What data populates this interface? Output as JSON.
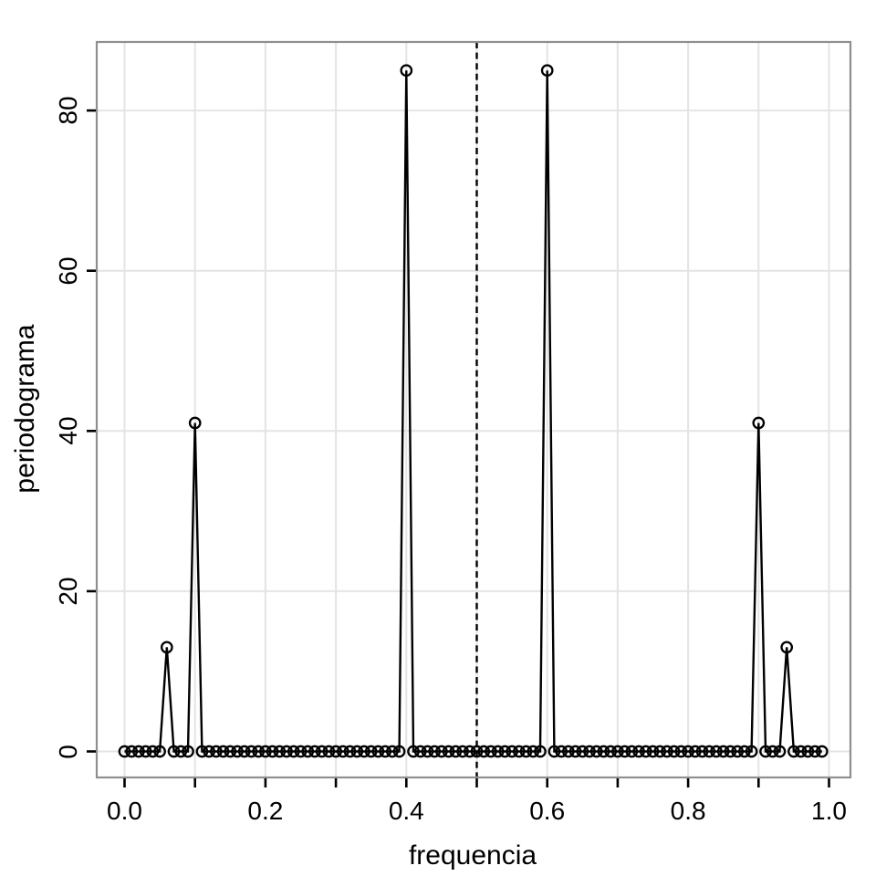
{
  "colors": {
    "background": "#ffffff",
    "panel_border": "#8f8f8f",
    "gridline": "#e4e4e4",
    "line": "#000000",
    "tick": "#000000",
    "text": "#000000"
  },
  "chart_data": {
    "type": "line",
    "title": "",
    "xlabel": "frequencia",
    "ylabel": "periodograma",
    "marker": "open-circle",
    "grid": true,
    "xlim": [
      0,
      1
    ],
    "ylim": [
      0,
      85
    ],
    "x_start": 0,
    "x_step": 0.01,
    "n_points": 100,
    "values": [
      0,
      0,
      0,
      0,
      0,
      0,
      13,
      0,
      0,
      0,
      41,
      0,
      0,
      0,
      0,
      0,
      0,
      0,
      0,
      0,
      0,
      0,
      0,
      0,
      0,
      0,
      0,
      0,
      0,
      0,
      0,
      0,
      0,
      0,
      0,
      0,
      0,
      0,
      0,
      0,
      85,
      0,
      0,
      0,
      0,
      0,
      0,
      0,
      0,
      0,
      0,
      0,
      0,
      0,
      0,
      0,
      0,
      0,
      0,
      0,
      85,
      0,
      0,
      0,
      0,
      0,
      0,
      0,
      0,
      0,
      0,
      0,
      0,
      0,
      0,
      0,
      0,
      0,
      0,
      0,
      0,
      0,
      0,
      0,
      0,
      0,
      0,
      0,
      0,
      0,
      41,
      0,
      0,
      0,
      13,
      0,
      0,
      0,
      0,
      0
    ],
    "peaks": [
      {
        "x": 0.06,
        "y": 13
      },
      {
        "x": 0.1,
        "y": 41
      },
      {
        "x": 0.4,
        "y": 85
      },
      {
        "x": 0.6,
        "y": 85
      },
      {
        "x": 0.9,
        "y": 41
      },
      {
        "x": 0.94,
        "y": 13
      }
    ],
    "vline": {
      "x": 0.5,
      "style": "dashed"
    },
    "x_ticks": [
      {
        "v": 0.0,
        "label": "0.0"
      },
      {
        "v": 0.1,
        "label": ""
      },
      {
        "v": 0.2,
        "label": "0.2"
      },
      {
        "v": 0.3,
        "label": ""
      },
      {
        "v": 0.4,
        "label": "0.4"
      },
      {
        "v": 0.5,
        "label": ""
      },
      {
        "v": 0.6,
        "label": "0.6"
      },
      {
        "v": 0.7,
        "label": ""
      },
      {
        "v": 0.8,
        "label": "0.8"
      },
      {
        "v": 0.9,
        "label": ""
      },
      {
        "v": 1.0,
        "label": "1.0"
      }
    ],
    "y_ticks": [
      {
        "v": 0,
        "label": "0"
      },
      {
        "v": 20,
        "label": "20"
      },
      {
        "v": 40,
        "label": "40"
      },
      {
        "v": 60,
        "label": "60"
      },
      {
        "v": 80,
        "label": "80"
      }
    ]
  }
}
